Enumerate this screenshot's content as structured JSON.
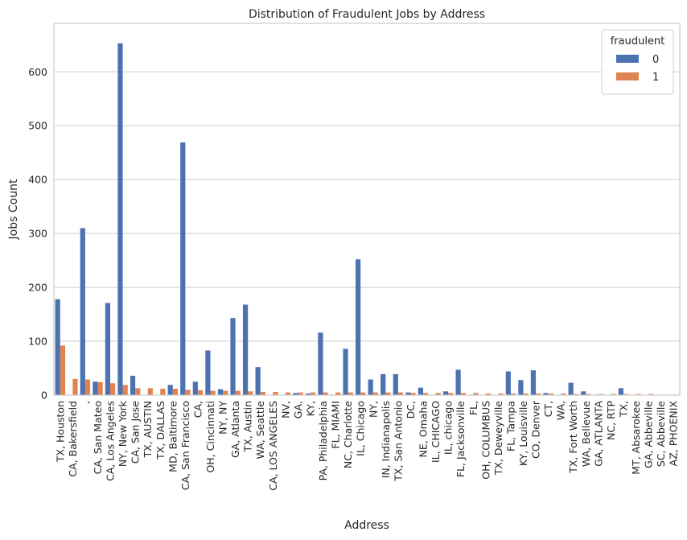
{
  "chart_data": {
    "type": "bar",
    "title": "Distribution of Fraudulent Jobs by Address",
    "xlabel": "Address",
    "ylabel": "Jobs Count",
    "ylim": [
      0,
      690
    ],
    "yticks": [
      0,
      100,
      200,
      300,
      400,
      500,
      600
    ],
    "grid": true,
    "legend": {
      "title": "fraudulent",
      "placement": "top-right"
    },
    "categories": [
      "TX, Houston",
      "CA, Bakersfield",
      ",",
      "CA, San Mateo",
      "CA, Los Angeles",
      "NY, New York",
      "CA, San Jose",
      "TX, AUSTIN",
      "TX, DALLAS",
      "MD, Baltimore",
      "CA, San Francisco",
      "CA,",
      "OH, Cincinnati",
      "NY, NY",
      "GA, Atlanta",
      "TX, Austin",
      "WA, Seattle",
      "CA, LOS ANGELES",
      "NV,",
      "GA,",
      "KY,",
      "PA, Philadelphia",
      "FL, MIAMI",
      "NC, Charlotte",
      "IL, Chicago",
      "NY,",
      "IN, Indianapolis",
      "TX, San Antonio",
      "DC,",
      "NE, Omaha",
      "IL, CHICAGO",
      "IL, chicago",
      "FL, Jacksonville",
      "FL,",
      "OH, COLUMBUS",
      "TX, Deweyville",
      "FL, Tampa",
      "KY, Louisville",
      "CO, Denver",
      "CT,",
      "WA,",
      "TX, Fort Worth",
      "WA, Bellevue",
      "GA, ATLANTA",
      "NC, RTP",
      "TX,",
      "MT, Absarokee",
      "GA, Abbeville",
      "SC, Abbeville",
      "AZ, PHOENIX"
    ],
    "series": [
      {
        "name": "0",
        "color": "#4c72b0",
        "values": [
          178,
          0,
          310,
          25,
          171,
          653,
          36,
          0,
          0,
          19,
          469,
          25,
          83,
          11,
          143,
          168,
          52,
          0,
          0,
          4,
          3,
          116,
          1,
          86,
          252,
          29,
          39,
          39,
          5,
          14,
          0,
          7,
          47,
          0,
          0,
          0,
          44,
          28,
          46,
          4,
          0,
          23,
          7,
          1,
          0,
          13,
          0,
          0,
          0,
          0
        ]
      },
      {
        "name": "1",
        "color": "#dd8452",
        "values": [
          92,
          30,
          29,
          24,
          22,
          19,
          13,
          13,
          12,
          12,
          10,
          9,
          8,
          8,
          8,
          7,
          6,
          6,
          5,
          5,
          5,
          5,
          5,
          5,
          5,
          5,
          5,
          5,
          4,
          4,
          4,
          4,
          4,
          4,
          3,
          3,
          3,
          3,
          3,
          3,
          3,
          2,
          2,
          2,
          2,
          2,
          2,
          2,
          1,
          1
        ]
      }
    ]
  }
}
